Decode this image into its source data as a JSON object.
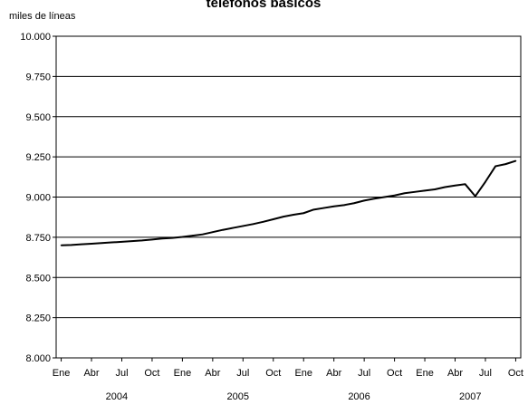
{
  "chart_data": {
    "type": "line",
    "title": "teléfonos básicos",
    "ylabel": "miles de líneas",
    "ylim": [
      8000,
      10000
    ],
    "yticks": [
      8000,
      8250,
      8500,
      8750,
      9000,
      9250,
      9500,
      9750,
      10000
    ],
    "ytick_labels": [
      "8.000",
      "8.250",
      "8.500",
      "8.750",
      "9.000",
      "9.250",
      "9.500",
      "9.750",
      "10.000"
    ],
    "month_labels": [
      "Ene",
      "Abr",
      "Jul",
      "Oct",
      "Ene",
      "Abr",
      "Jul",
      "Oct",
      "Ene",
      "Abr",
      "Jul",
      "Oct",
      "Ene",
      "Abr",
      "Jul",
      "Oct"
    ],
    "years": [
      "2004",
      "2005",
      "2006",
      "2007"
    ],
    "grid": true,
    "legend": "none",
    "line_color": "#000000",
    "x": [
      "2004-01",
      "2004-02",
      "2004-03",
      "2004-04",
      "2004-05",
      "2004-06",
      "2004-07",
      "2004-08",
      "2004-09",
      "2004-10",
      "2004-11",
      "2004-12",
      "2005-01",
      "2005-02",
      "2005-03",
      "2005-04",
      "2005-05",
      "2005-06",
      "2005-07",
      "2005-08",
      "2005-09",
      "2005-10",
      "2005-11",
      "2005-12",
      "2006-01",
      "2006-02",
      "2006-03",
      "2006-04",
      "2006-05",
      "2006-06",
      "2006-07",
      "2006-08",
      "2006-09",
      "2006-10",
      "2006-11",
      "2006-12",
      "2007-01",
      "2007-02",
      "2007-03",
      "2007-04",
      "2007-05",
      "2007-06",
      "2007-07",
      "2007-08",
      "2007-09",
      "2007-10"
    ],
    "series": [
      {
        "values": [
          8700,
          8702,
          8706,
          8710,
          8714,
          8718,
          8722,
          8726,
          8730,
          8736,
          8742,
          8746,
          8752,
          8760,
          8768,
          8782,
          8796,
          8808,
          8820,
          8832,
          8846,
          8862,
          8878,
          8890,
          8900,
          8922,
          8932,
          8942,
          8950,
          8962,
          8978,
          8990,
          9000,
          9010,
          9024,
          9032,
          9040,
          9048,
          9062,
          9072,
          9080,
          9005,
          9095,
          9192,
          9205,
          9225
        ]
      }
    ]
  }
}
